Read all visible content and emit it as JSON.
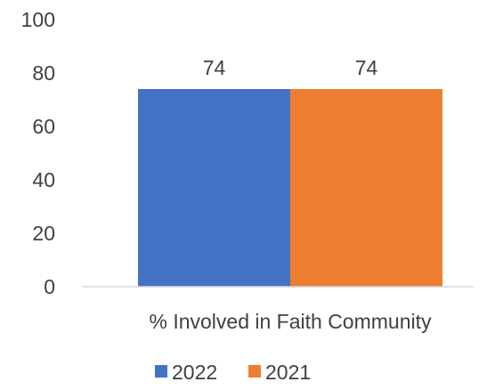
{
  "chart_data": {
    "type": "bar",
    "categories": [
      "% Involved in Faith Community"
    ],
    "series": [
      {
        "name": "2022",
        "values": [
          74
        ],
        "color": "#4472C4"
      },
      {
        "name": "2021",
        "values": [
          74
        ],
        "color": "#ED7D31"
      }
    ],
    "ylim": [
      0,
      100
    ],
    "yticks": [
      0,
      20,
      40,
      60,
      80,
      100
    ],
    "grid": false,
    "legend": "bottom",
    "data_labels": true,
    "colors": {
      "axis": "#D9D9D9",
      "text": "#404040"
    }
  }
}
